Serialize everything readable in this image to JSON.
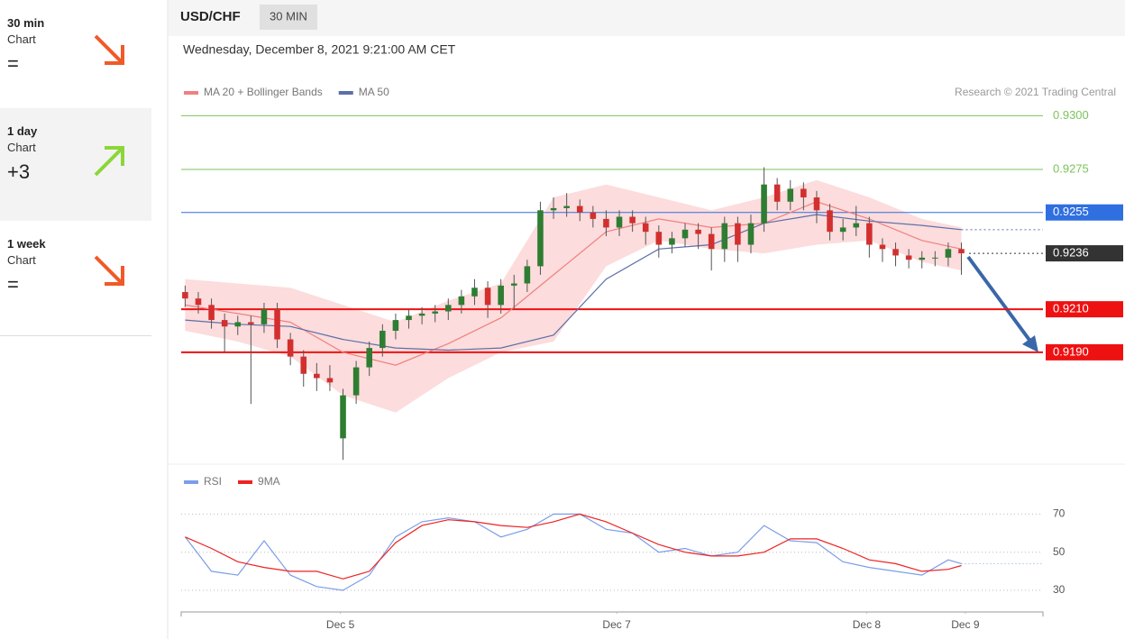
{
  "sidebar": {
    "items": [
      {
        "period": "30 min",
        "label": "Chart",
        "score": "="
      },
      {
        "period": "1 day",
        "label": "Chart",
        "score": "+3"
      },
      {
        "period": "1 week",
        "label": "Chart",
        "score": "="
      }
    ]
  },
  "chart_data": [
    {
      "type": "candlestick",
      "title": "USD/CHF",
      "interval": "30 MIN",
      "subtitle": "Wednesday, December 8, 2021 9:21:00 AM CET",
      "source": "Research © 2021 Trading Central",
      "open": [
        0.9218,
        0.9215,
        0.9212,
        0.9205,
        0.9202,
        0.9204,
        0.9203,
        0.921,
        0.9196,
        0.9188,
        0.918,
        0.9178,
        0.915,
        0.917,
        0.9183,
        0.9192,
        0.92,
        0.9205,
        0.9207,
        0.9208,
        0.9209,
        0.9212,
        0.9216,
        0.922,
        0.9212,
        0.9221,
        0.9222,
        0.923,
        0.9256,
        0.9257,
        0.9258,
        0.9255,
        0.9252,
        0.9248,
        0.9253,
        0.925,
        0.9246,
        0.924,
        0.9243,
        0.9247,
        0.9245,
        0.9238,
        0.925,
        0.924,
        0.925,
        0.9268,
        0.926,
        0.9266,
        0.9262,
        0.9256,
        0.9246,
        0.9248,
        0.925,
        0.924,
        0.9238,
        0.9235,
        0.9233,
        0.9234,
        0.9234,
        0.9238
      ],
      "high": [
        0.9221,
        0.9218,
        0.9215,
        0.9208,
        0.9207,
        0.9207,
        0.9213,
        0.9213,
        0.9199,
        0.9191,
        0.9185,
        0.9184,
        0.9173,
        0.9186,
        0.9195,
        0.9203,
        0.9208,
        0.921,
        0.9211,
        0.9212,
        0.9215,
        0.9219,
        0.9224,
        0.9223,
        0.9224,
        0.9226,
        0.9233,
        0.926,
        0.9262,
        0.9264,
        0.9261,
        0.9258,
        0.9256,
        0.9256,
        0.9256,
        0.9253,
        0.9249,
        0.9246,
        0.925,
        0.925,
        0.9248,
        0.9253,
        0.9253,
        0.9254,
        0.9276,
        0.9271,
        0.927,
        0.9269,
        0.9265,
        0.9259,
        0.9252,
        0.9258,
        0.9253,
        0.9243,
        0.9241,
        0.9238,
        0.9237,
        0.9237,
        0.9241,
        0.9241
      ],
      "low": [
        0.9211,
        0.9208,
        0.9201,
        0.919,
        0.9198,
        0.9166,
        0.9199,
        0.9192,
        0.9184,
        0.9174,
        0.9172,
        0.9172,
        0.914,
        0.9166,
        0.9179,
        0.9188,
        0.9196,
        0.9201,
        0.9203,
        0.9204,
        0.9205,
        0.9208,
        0.9212,
        0.9206,
        0.9208,
        0.921,
        0.9218,
        0.9226,
        0.9252,
        0.9253,
        0.9251,
        0.9248,
        0.9244,
        0.9244,
        0.9246,
        0.924,
        0.9234,
        0.9236,
        0.9239,
        0.9238,
        0.9228,
        0.9232,
        0.9232,
        0.9236,
        0.9246,
        0.9256,
        0.9256,
        0.9256,
        0.925,
        0.9242,
        0.9242,
        0.9244,
        0.9234,
        0.9232,
        0.923,
        0.9229,
        0.9229,
        0.923,
        0.923,
        0.9226
      ],
      "close": [
        0.9215,
        0.9212,
        0.9205,
        0.9202,
        0.9204,
        0.9203,
        0.921,
        0.9196,
        0.9188,
        0.918,
        0.9178,
        0.9176,
        0.917,
        0.9183,
        0.9192,
        0.92,
        0.9205,
        0.9207,
        0.9208,
        0.9209,
        0.9212,
        0.9216,
        0.922,
        0.9212,
        0.9221,
        0.9222,
        0.923,
        0.9256,
        0.9257,
        0.9258,
        0.9255,
        0.9252,
        0.9248,
        0.9253,
        0.925,
        0.9246,
        0.924,
        0.9243,
        0.9247,
        0.9245,
        0.9238,
        0.925,
        0.924,
        0.925,
        0.9268,
        0.926,
        0.9266,
        0.9262,
        0.9256,
        0.9246,
        0.9248,
        0.925,
        0.924,
        0.9238,
        0.9235,
        0.9233,
        0.9234,
        0.9234,
        0.9238,
        0.9236
      ],
      "up_color": "#2e7d32",
      "down_color": "#d32f2f",
      "series": [
        {
          "name": "MA 20 + Bollinger Bands",
          "color": "#f08080",
          "band_color": "#fbd3d3",
          "x": [
            0,
            4,
            8,
            12,
            16,
            20,
            24,
            28,
            32,
            36,
            40,
            44,
            48,
            52,
            56,
            59
          ],
          "values": [
            0.9212,
            0.9208,
            0.9204,
            0.919,
            0.9184,
            0.9194,
            0.9206,
            0.9226,
            0.9246,
            0.9252,
            0.9248,
            0.925,
            0.926,
            0.9252,
            0.9242,
            0.9238
          ],
          "upper": [
            0.9224,
            0.9222,
            0.922,
            0.9212,
            0.9204,
            0.9214,
            0.9222,
            0.9262,
            0.9268,
            0.9262,
            0.9256,
            0.9262,
            0.927,
            0.9262,
            0.9252,
            0.9248
          ],
          "lower": [
            0.92,
            0.9195,
            0.9188,
            0.917,
            0.9162,
            0.9178,
            0.919,
            0.9195,
            0.923,
            0.9242,
            0.9238,
            0.9236,
            0.924,
            0.9242,
            0.9232,
            0.9228
          ]
        },
        {
          "name": "MA 50",
          "color": "#5b6fa8",
          "x": [
            0,
            4,
            8,
            12,
            16,
            20,
            24,
            28,
            32,
            36,
            40,
            44,
            48,
            52,
            56,
            59
          ],
          "values": [
            0.9205,
            0.9203,
            0.9202,
            0.9196,
            0.9192,
            0.9191,
            0.9192,
            0.9198,
            0.9224,
            0.9238,
            0.924,
            0.925,
            0.9254,
            0.9251,
            0.9249,
            0.9247
          ]
        }
      ],
      "levels": [
        {
          "value": 0.93,
          "label": "0.9300",
          "color": "#7cc35a",
          "style": "text"
        },
        {
          "value": 0.9275,
          "label": "0.9275",
          "color": "#7cc35a",
          "style": "text"
        },
        {
          "value": 0.9255,
          "label": "0.9255",
          "color": "#2f6fe0",
          "style": "tag"
        },
        {
          "value": 0.9236,
          "label": "0.9236",
          "color": "#333333",
          "style": "dotted-tag"
        },
        {
          "value": 0.921,
          "label": "0.9210",
          "color": "#ee1111",
          "style": "tag"
        },
        {
          "value": 0.919,
          "label": "0.9190",
          "color": "#ee1111",
          "style": "tag"
        }
      ],
      "ylim": [
        0.9138,
        0.9337
      ],
      "xlim": [
        -0.3,
        65.2
      ],
      "xticks": [
        {
          "value": 11.8,
          "label": "Dec 5"
        },
        {
          "value": 32.8,
          "label": "Dec 7"
        },
        {
          "value": 51.8,
          "label": "Dec 8"
        },
        {
          "value": 59.3,
          "label": "Dec 9"
        }
      ]
    },
    {
      "type": "line",
      "series": [
        {
          "name": "RSI",
          "color": "#7b9ee8",
          "x": [
            0,
            2,
            4,
            6,
            8,
            10,
            12,
            14,
            16,
            18,
            20,
            22,
            24,
            26,
            28,
            30,
            32,
            34,
            36,
            38,
            40,
            42,
            44,
            46,
            48,
            50,
            52,
            54,
            56,
            58,
            59
          ],
          "values": [
            58,
            40,
            38,
            56,
            38,
            32,
            30,
            38,
            58,
            66,
            68,
            66,
            58,
            62,
            70,
            70,
            62,
            60,
            50,
            52,
            48,
            50,
            64,
            56,
            55,
            45,
            42,
            40,
            38,
            46,
            44
          ]
        },
        {
          "name": "9MA",
          "color": "#ee2222",
          "x": [
            0,
            2,
            4,
            6,
            8,
            10,
            12,
            14,
            16,
            18,
            20,
            22,
            24,
            26,
            28,
            30,
            32,
            34,
            36,
            38,
            40,
            42,
            44,
            46,
            48,
            50,
            52,
            54,
            56,
            58,
            59
          ],
          "values": [
            58,
            52,
            45,
            42,
            40,
            40,
            36,
            40,
            55,
            64,
            67,
            66,
            64,
            63,
            66,
            70,
            66,
            60,
            54,
            50,
            48,
            48,
            50,
            57,
            57,
            52,
            46,
            44,
            40,
            41,
            43
          ]
        }
      ],
      "ylim": [
        21.5,
        82
      ],
      "yticks": [
        70,
        50,
        30
      ],
      "xlim": [
        -0.3,
        65.2
      ]
    }
  ]
}
